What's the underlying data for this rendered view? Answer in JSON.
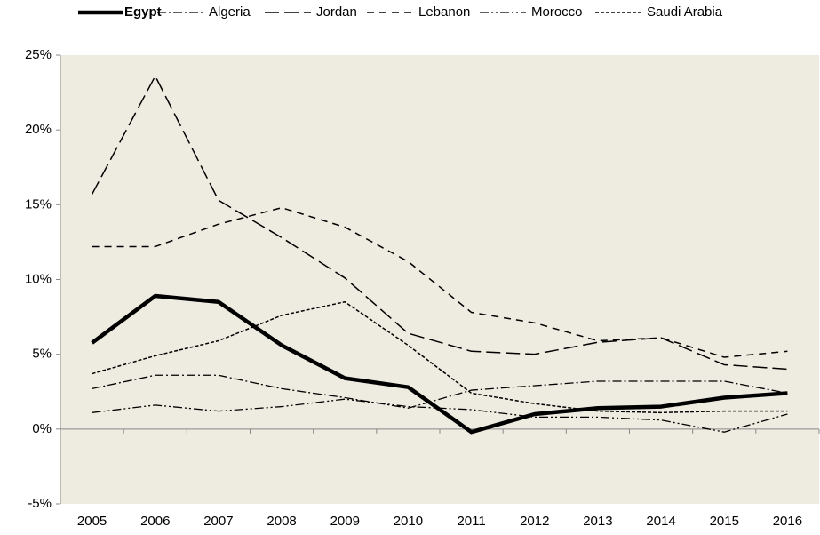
{
  "chart_data": {
    "type": "line",
    "categories": [
      "2005",
      "2006",
      "2007",
      "2008",
      "2009",
      "2010",
      "2011",
      "2012",
      "2013",
      "2014",
      "2015",
      "2016"
    ],
    "series": [
      {
        "name": "Egypt",
        "color": "#000000",
        "values": [
          5.76,
          8.9,
          8.5,
          5.6,
          3.4,
          2.8,
          -0.2,
          1.0,
          1.4,
          1.5,
          2.1,
          2.4
        ]
      },
      {
        "name": "Algeria",
        "color": "#000000",
        "values": [
          2.7,
          3.6,
          3.6,
          2.7,
          2.1,
          1.4,
          2.6,
          2.9,
          3.2,
          3.2,
          3.2,
          2.4
        ]
      },
      {
        "name": "Jordan",
        "color": "#000000",
        "values": [
          15.7,
          23.6,
          15.3,
          12.8,
          10.1,
          6.4,
          5.2,
          5.0,
          5.8,
          6.1,
          4.3,
          4.0
        ]
      },
      {
        "name": "Lebanon",
        "color": "#000000",
        "values": [
          12.2,
          12.2,
          13.7,
          14.8,
          13.5,
          11.2,
          7.8,
          7.1,
          5.9,
          6.1,
          4.8,
          5.2
        ]
      },
      {
        "name": "Morocco",
        "color": "#000000",
        "values": [
          1.1,
          1.6,
          1.2,
          1.5,
          2.0,
          1.5,
          1.3,
          0.8,
          0.8,
          0.6,
          -0.2,
          1.0
        ]
      },
      {
        "name": "Saudi Arabia",
        "color": "#000000",
        "values": [
          3.7,
          4.9,
          5.9,
          7.6,
          8.5,
          5.6,
          2.4,
          1.7,
          1.2,
          1.1,
          1.2,
          1.2
        ]
      }
    ],
    "ylim": [
      -5,
      25
    ],
    "yticks": [
      {
        "value": -5,
        "label": "-5%"
      },
      {
        "value": 0,
        "label": "0%"
      },
      {
        "value": 5,
        "label": "5%"
      },
      {
        "value": 10,
        "label": "10%"
      },
      {
        "value": 15,
        "label": "15%"
      },
      {
        "value": 20,
        "label": "20%"
      },
      {
        "value": 25,
        "label": "25%"
      }
    ],
    "plot_background": "#eeebe0",
    "legend": "top"
  }
}
